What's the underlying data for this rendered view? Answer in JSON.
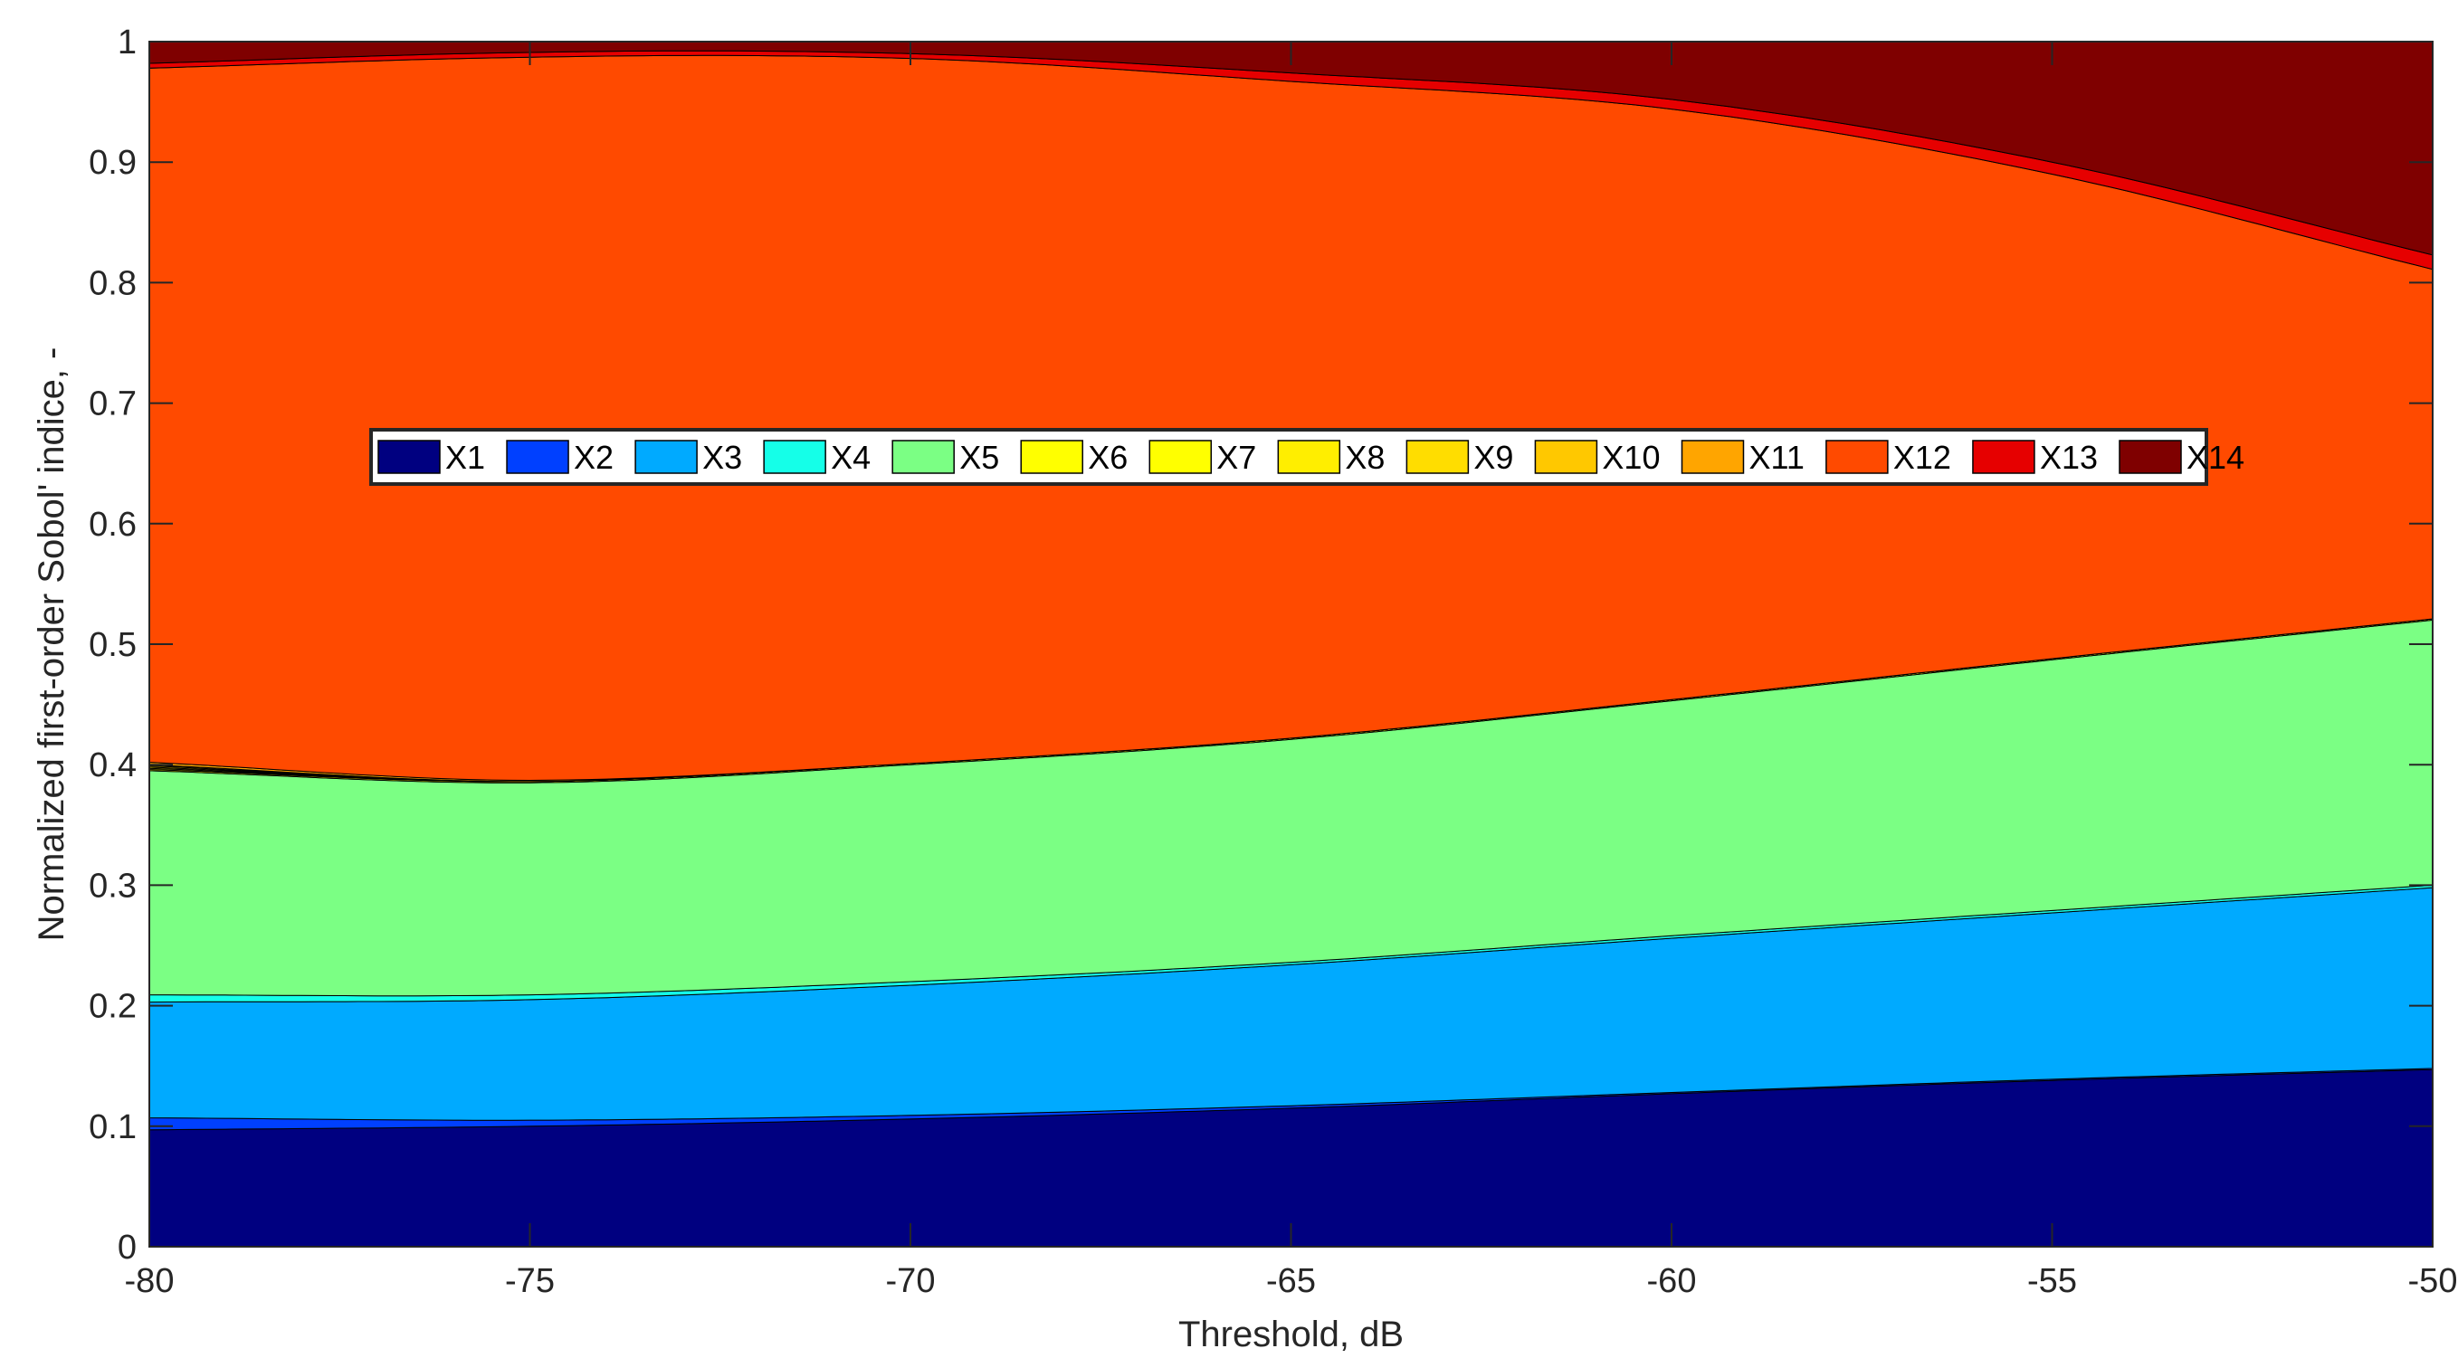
{
  "chart_data": {
    "type": "area",
    "stacked": true,
    "xlabel": "Threshold, dB",
    "ylabel": "Normalized first-order Sobol' indice, -",
    "xlim": [
      -80,
      -50
    ],
    "ylim": [
      0,
      1
    ],
    "xticks": [
      -80,
      -75,
      -70,
      -65,
      -60,
      -55,
      -50
    ],
    "yticks": [
      0,
      0.1,
      0.2,
      0.3,
      0.4,
      0.5,
      0.6,
      0.7,
      0.8,
      0.9,
      1
    ],
    "xtick_labels": [
      "-80",
      "-75",
      "-70",
      "-65",
      "-60",
      "-55",
      "-50"
    ],
    "ytick_labels": [
      "0",
      "0.1",
      "0.2",
      "0.3",
      "0.4",
      "0.5",
      "0.6",
      "0.7",
      "0.8",
      "0.9",
      "1"
    ],
    "grid": false,
    "legend_position": "center-left, horizontal",
    "x": [
      -80,
      -75,
      -70,
      -65,
      -60,
      -55,
      -50
    ],
    "series": [
      {
        "name": "X1",
        "color": "#000080",
        "values": [
          0.097,
          0.1,
          0.106,
          0.115,
          0.127,
          0.138,
          0.147
        ]
      },
      {
        "name": "X2",
        "color": "#0040ff",
        "values": [
          0.01,
          0.005,
          0.003,
          0.002,
          0.001,
          0.001,
          0.001
        ]
      },
      {
        "name": "X3",
        "color": "#00aaff",
        "values": [
          0.096,
          0.1,
          0.108,
          0.117,
          0.128,
          0.138,
          0.15
        ]
      },
      {
        "name": "X4",
        "color": "#15ffe8",
        "values": [
          0.006,
          0.004,
          0.003,
          0.002,
          0.002,
          0.002,
          0.002
        ]
      },
      {
        "name": "X5",
        "color": "#7bff84",
        "values": [
          0.186,
          0.176,
          0.18,
          0.185,
          0.195,
          0.208,
          0.22
        ]
      },
      {
        "name": "X6",
        "color": "#ffff00",
        "values": [
          0.001,
          0.001,
          0.001,
          0.001,
          0.001,
          0.001,
          0.001
        ]
      },
      {
        "name": "X7",
        "color": "#ffff00",
        "values": [
          0.001,
          0.0,
          0.0,
          0.0,
          0.0,
          0.0,
          0.0
        ]
      },
      {
        "name": "X8",
        "color": "#ffee00",
        "values": [
          0.001,
          0.0,
          0.0,
          0.0,
          0.0,
          0.0,
          0.0
        ]
      },
      {
        "name": "X9",
        "color": "#ffdd00",
        "values": [
          0.001,
          0.0,
          0.0,
          0.0,
          0.0,
          0.0,
          0.0
        ]
      },
      {
        "name": "X10",
        "color": "#ffc800",
        "values": [
          0.001,
          0.0,
          0.0,
          0.0,
          0.0,
          0.0,
          0.0
        ]
      },
      {
        "name": "X11",
        "color": "#ffa500",
        "values": [
          0.002,
          0.001,
          0.0,
          0.0,
          0.0,
          0.0,
          0.0
        ]
      },
      {
        "name": "X12",
        "color": "#ff4a00",
        "values": [
          0.576,
          0.6,
          0.585,
          0.545,
          0.49,
          0.402,
          0.29
        ]
      },
      {
        "name": "X13",
        "color": "#e60000",
        "values": [
          0.004,
          0.004,
          0.004,
          0.007,
          0.008,
          0.01,
          0.012
        ]
      },
      {
        "name": "X14",
        "color": "#7f0000",
        "values": [
          0.018,
          0.009,
          0.01,
          0.026,
          0.048,
          0.1,
          0.178
        ]
      }
    ]
  }
}
